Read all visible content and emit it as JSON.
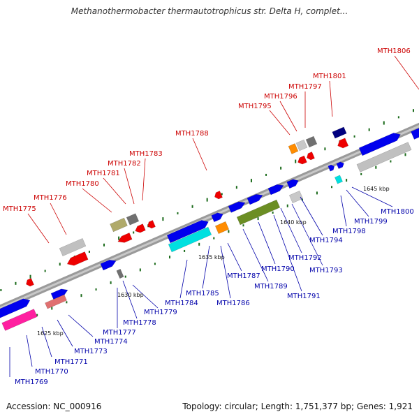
{
  "title": "Methanothermobacter thermautotrophicus str. Delta H, complet...",
  "accession_text": "Accession: NC_000916",
  "summary_text": "Topology: circular; Length: 1,751,377 bp; Genes: 1,921",
  "colors": {
    "backbone": "#8a8a8a",
    "forward_gene": "#0000ee",
    "reverse_gene": "#ee0000",
    "label_forward": "#0000aa",
    "label_reverse": "#cc0000",
    "gc_dot": "#1a6a1a"
  },
  "scale_ticks": [
    "1625 kbp",
    "1630 kbp",
    "1635 kbp",
    "1640 kbp",
    "1645 kbp"
  ],
  "upper_labels": [
    "MTH1775",
    "MTH1776",
    "MTH1780",
    "MTH1781",
    "MTH1782",
    "MTH1783",
    "MTH1788",
    "MTH1795",
    "MTH1796",
    "MTH1797",
    "MTH1801",
    "MTH1806"
  ],
  "lower_labels": [
    "MTH1769",
    "MTH1770",
    "MTH1771",
    "MTH1773",
    "MTH1774",
    "MTH1777",
    "MTH1778",
    "MTH1779",
    "MTH1784",
    "MTH1785",
    "MTH1786",
    "MTH1787",
    "MTH1789",
    "MTH1790",
    "MTH1791",
    "MTH1792",
    "MTH1793",
    "MTH1794",
    "MTH1798",
    "MTH1799",
    "MTH1800"
  ]
}
